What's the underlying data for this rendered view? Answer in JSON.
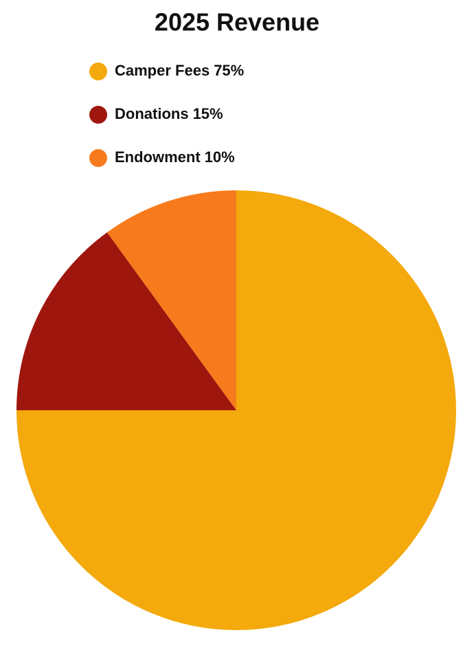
{
  "chart_data": {
    "type": "pie",
    "title": "2025 Revenue",
    "categories": [
      "Camper Fees",
      "Donations",
      "Endowment"
    ],
    "values": [
      75,
      15,
      10
    ],
    "value_labels": [
      "75%",
      "15%",
      "10%"
    ],
    "colors": [
      "#f4a90c",
      "#9e160d",
      "#f77b1d"
    ]
  }
}
